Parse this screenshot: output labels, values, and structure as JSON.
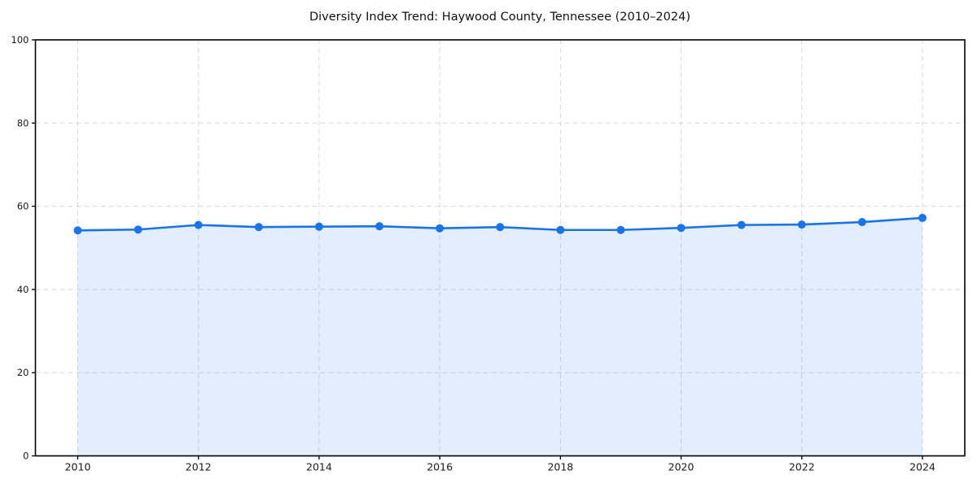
{
  "chart_data": {
    "type": "line",
    "title": "Diversity Index Trend: Haywood County, Tennessee (2010–2024)",
    "series_name": "Diversity Index",
    "x": [
      2010,
      2011,
      2012,
      2013,
      2014,
      2015,
      2016,
      2017,
      2018,
      2019,
      2020,
      2021,
      2022,
      2023,
      2024
    ],
    "values": [
      54.2,
      54.4,
      55.5,
      55.0,
      55.1,
      55.2,
      54.7,
      55.0,
      54.3,
      54.3,
      54.8,
      55.5,
      55.6,
      56.2,
      57.2
    ],
    "xticks": [
      2010,
      2012,
      2014,
      2016,
      2018,
      2020,
      2022,
      2024
    ],
    "yticks": [
      0,
      20,
      40,
      60,
      80,
      100
    ],
    "ylim": [
      0,
      100
    ],
    "xlabel": "",
    "ylabel": "",
    "grid": true,
    "grid_style": "dashed",
    "legend": "none",
    "marker": "circle",
    "area_filled_to_zero": true,
    "colors": {
      "line": "#1a73e8",
      "marker": "#1a73e8",
      "area_fill": "rgba(26,115,232,0.12)",
      "grid": "#d8d8d8",
      "axis": "#000000",
      "tick_label": "#1a1a1a",
      "title": "#111111",
      "background": "#ffffff"
    }
  }
}
